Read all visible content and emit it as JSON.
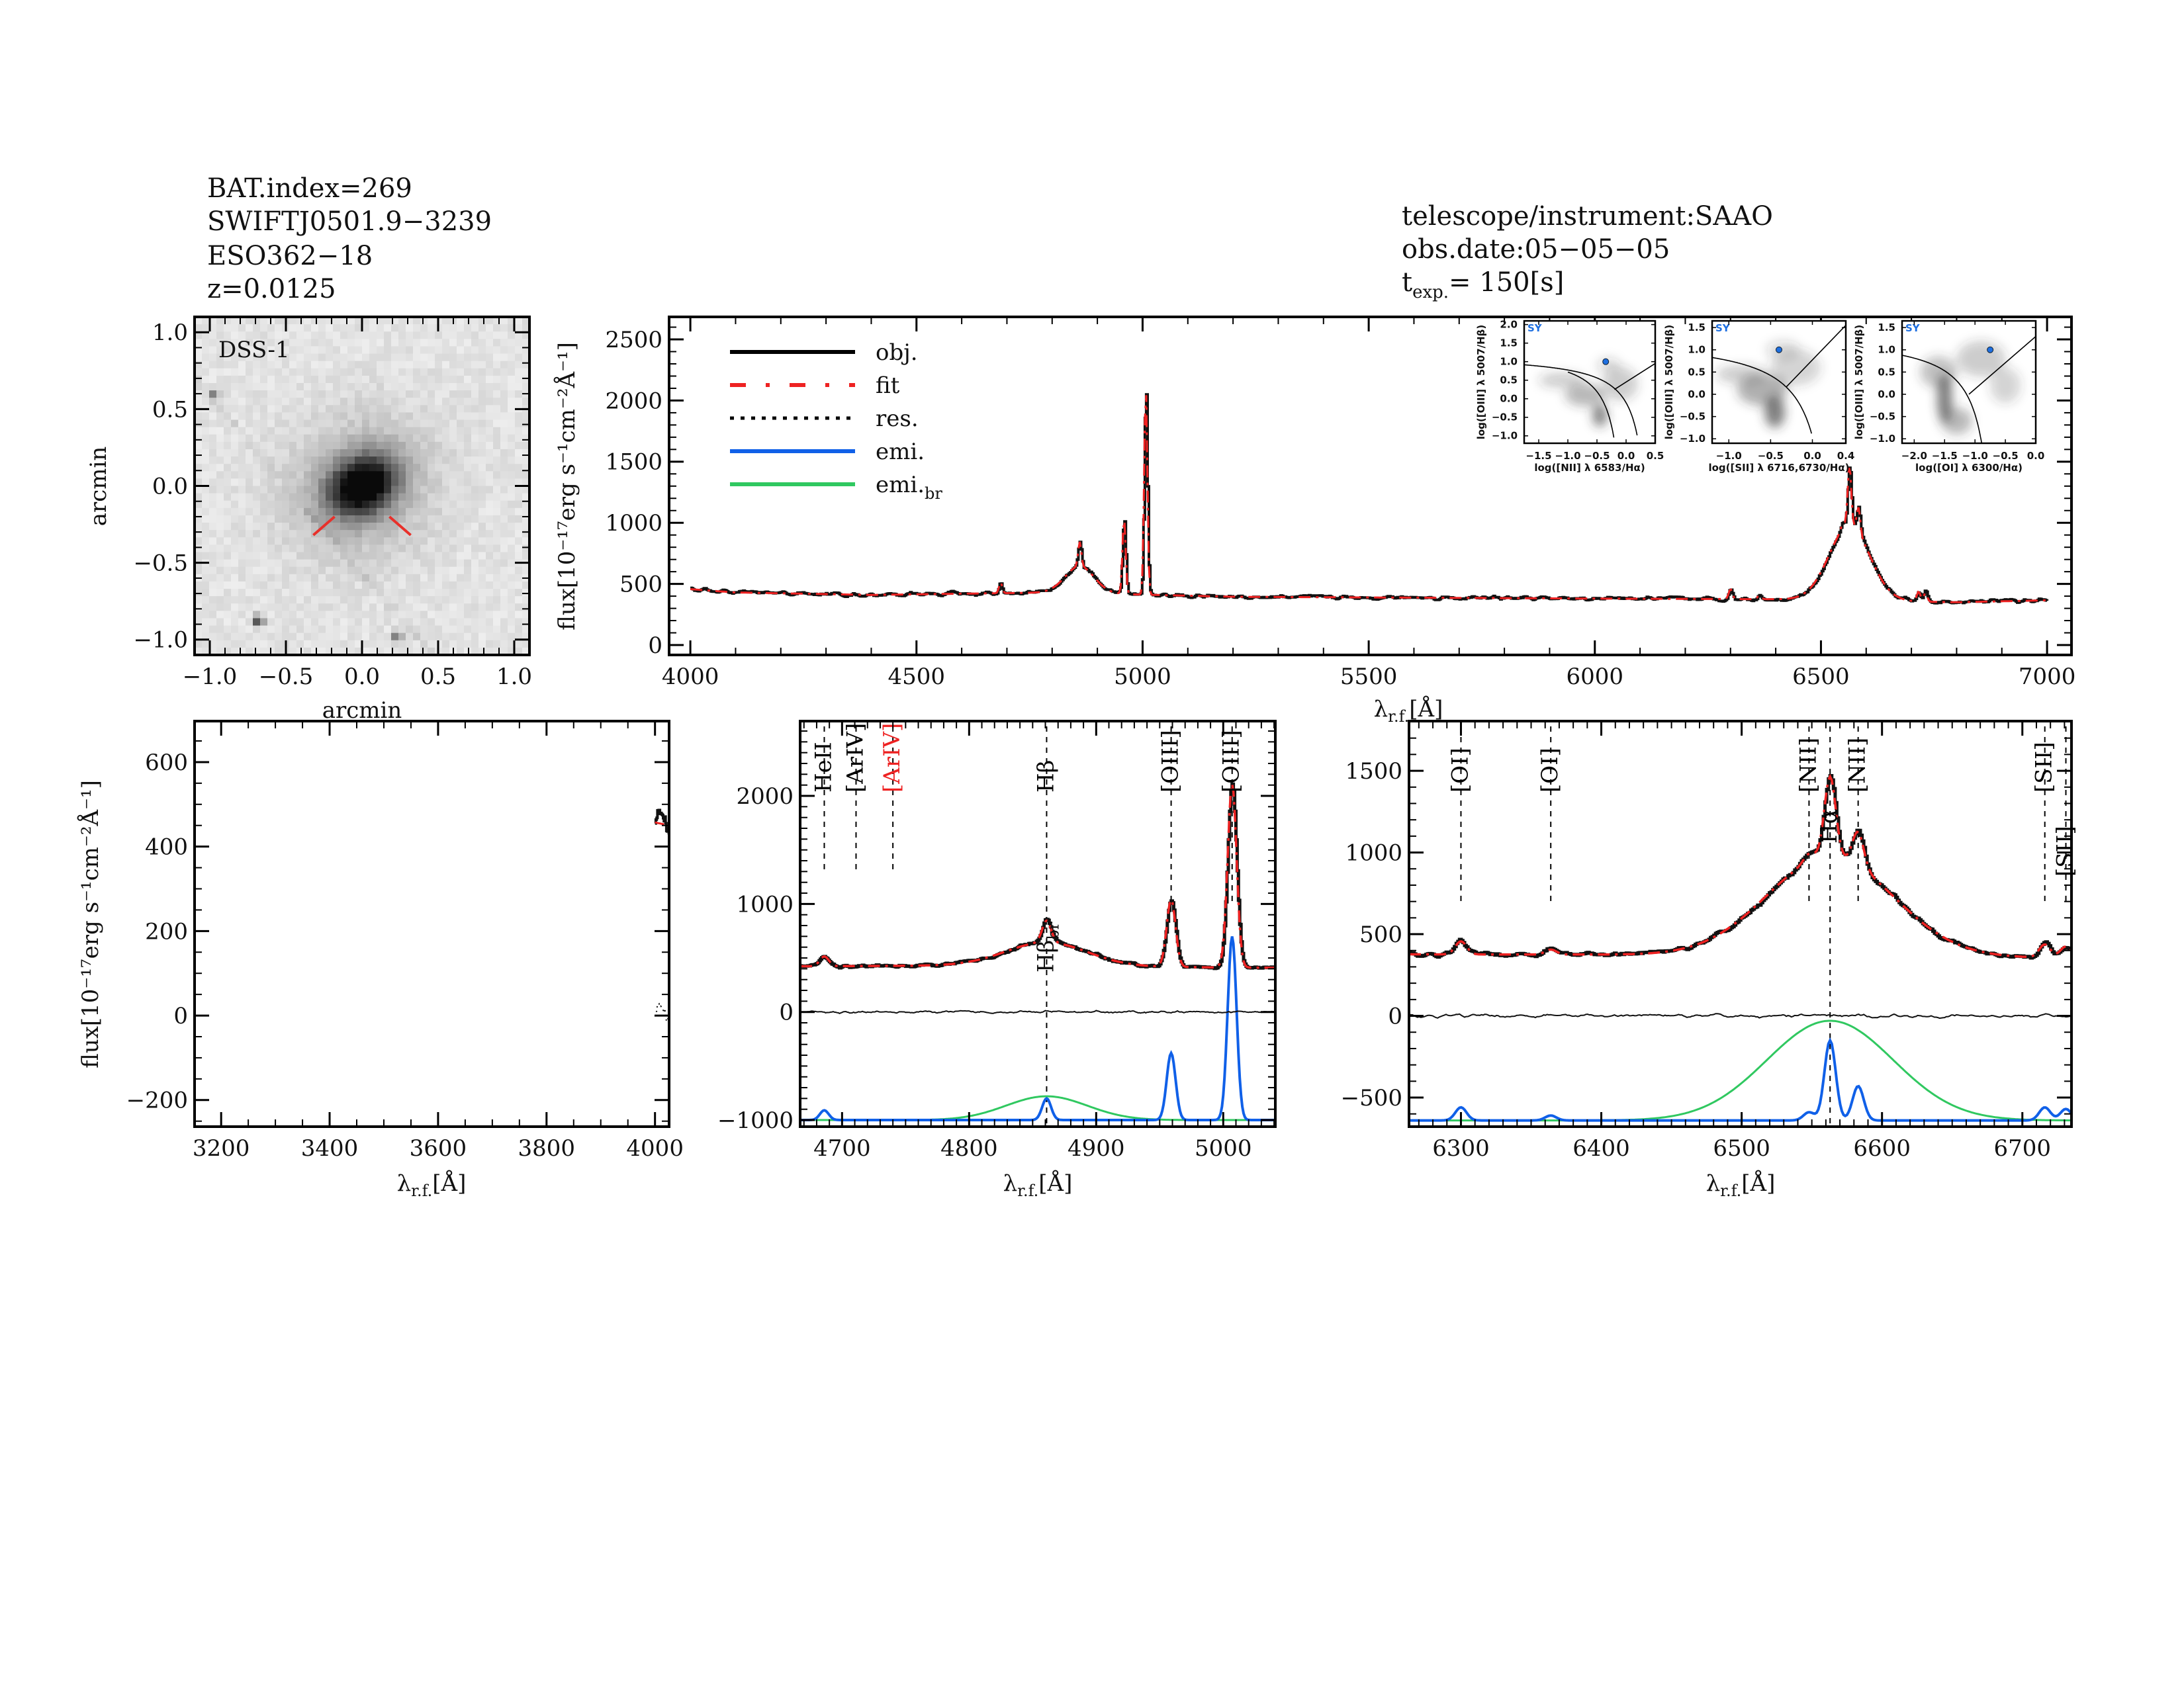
{
  "header_left": {
    "lines": [
      "BAT.index=269",
      "SWIFTJ0501.9−3239",
      "ESO362−18",
      "z=0.0125"
    ]
  },
  "header_right": {
    "instrument": "telescope/instrument:SAAO",
    "obs_date": "obs.date:05−05−05",
    "texp_label": "t",
    "texp_sub": "exp.",
    "texp_value": "=  150[s]"
  },
  "chart_data": [
    {
      "id": "image",
      "type": "heatmap",
      "label": "DSS-1",
      "xlabel": "arcmin",
      "ylabel": "arcmin",
      "xlim": [
        -1.1,
        1.1
      ],
      "ylim": [
        -1.1,
        1.1
      ],
      "xticks": [
        -1.0,
        -0.5,
        0.0,
        0.5,
        1.0
      ],
      "yticks": [
        -1.0,
        -0.5,
        0.0,
        0.5,
        1.0
      ],
      "tick_labels": [
        "−1.0",
        "−0.5",
        "0.0",
        "0.5",
        "1.0"
      ],
      "marker_color": "#e8302a"
    },
    {
      "id": "main",
      "type": "line",
      "ylabel": "flux[10⁻¹⁷erg s⁻¹cm⁻²Å⁻¹]",
      "xlabel": "λ",
      "xlabel_sub": "r.f.",
      "xlabel_unit": "[Å]",
      "xlim": [
        3953,
        7054
      ],
      "ylim": [
        -81,
        2684
      ],
      "xticks": [
        4000,
        4500,
        5000,
        5500,
        6000,
        6500,
        7000
      ],
      "yticks": [
        0,
        500,
        1000,
        1500,
        2000,
        2500
      ],
      "legend": {
        "position": "top-left",
        "entries": [
          {
            "label": "obj.",
            "color": "#000000",
            "style": "solid"
          },
          {
            "label": "fit",
            "color": "#ee2222",
            "style": "dash-dot"
          },
          {
            "label": "res.",
            "color": "#000000",
            "style": "dotted"
          },
          {
            "label": "emi.",
            "color": "#1060e8",
            "style": "solid"
          },
          {
            "label": "emi.",
            "sub": "br",
            "color": "#30c860",
            "style": "solid"
          }
        ]
      },
      "continuum": [
        [
          3953,
          470
        ],
        [
          4100,
          430
        ],
        [
          4400,
          410
        ],
        [
          4800,
          430
        ],
        [
          5200,
          395
        ],
        [
          6000,
          380
        ],
        [
          6400,
          375
        ],
        [
          6800,
          350
        ],
        [
          7054,
          370
        ]
      ],
      "lines": [
        {
          "name": "HeII",
          "center": 4686,
          "peak": 90,
          "sigma": 3.5
        },
        {
          "name": "Hbeta_br",
          "center": 4861,
          "peak": 220,
          "sigma": 32
        },
        {
          "name": "Hbeta",
          "center": 4861,
          "peak": 200,
          "sigma": 3.5
        },
        {
          "name": "[OIII]4959",
          "center": 4959,
          "peak": 620,
          "sigma": 3.5
        },
        {
          "name": "[OIII]5007",
          "center": 5007,
          "peak": 1700,
          "sigma": 3.5
        },
        {
          "name": "[OI]6300",
          "center": 6300,
          "peak": 80,
          "sigma": 4
        },
        {
          "name": "[OI]6364",
          "center": 6364,
          "peak": 30,
          "sigma": 4
        },
        {
          "name": "Halpha_br",
          "center": 6563,
          "peak": 610,
          "sigma": 45
        },
        {
          "name": "[NII]6548",
          "center": 6548,
          "peak": 50,
          "sigma": 4
        },
        {
          "name": "Halpha",
          "center": 6563,
          "peak": 490,
          "sigma": 4
        },
        {
          "name": "[NII]6583",
          "center": 6583,
          "peak": 210,
          "sigma": 4
        },
        {
          "name": "[SII]6716",
          "center": 6716,
          "peak": 80,
          "sigma": 4
        },
        {
          "name": "[SII]6731",
          "center": 6731,
          "peak": 70,
          "sigma": 4
        }
      ]
    },
    {
      "id": "zoom-blue",
      "type": "line",
      "ylabel": "flux[10⁻¹⁷erg s⁻¹cm⁻²Å⁻¹]",
      "xlabel": "λ",
      "xlabel_sub": "r.f.",
      "xlabel_unit": "[Å]",
      "xlim": [
        3151,
        4026
      ],
      "ylim": [
        -263,
        697
      ],
      "xticks": [
        3200,
        3400,
        3600,
        3800,
        4000
      ],
      "yticks": [
        -200,
        0,
        200,
        400,
        600
      ]
    },
    {
      "id": "zoom-hbeta",
      "type": "line",
      "xlabel": "λ",
      "xlabel_sub": "r.f.",
      "xlabel_unit": "[Å]",
      "xlim": [
        4667,
        5041
      ],
      "ylim": [
        -1061,
        2692
      ],
      "xticks": [
        4700,
        4800,
        4900,
        5000
      ],
      "yticks": [
        -1000,
        0,
        1000,
        2000
      ],
      "emission_offset": -1000,
      "line_markers": [
        {
          "label": "HeII",
          "wave": 4686,
          "color": "#000000"
        },
        {
          "label": "[ArIV]",
          "wave": 4711,
          "color": "#000000"
        },
        {
          "label": "[ArIV]",
          "wave": 4740,
          "color": "#ee2222"
        },
        {
          "label": "Hβ",
          "wave": 4861,
          "color": "#000000",
          "full": true,
          "label2": "Hβ",
          "label2_sub": "br"
        },
        {
          "label": "[OIII]",
          "wave": 4959,
          "color": "#000000"
        },
        {
          "label": "[OIII]",
          "wave": 5007,
          "color": "#000000"
        }
      ]
    },
    {
      "id": "zoom-halpha",
      "type": "line",
      "xlabel": "λ",
      "xlabel_sub": "r.f.",
      "xlabel_unit": "[Å]",
      "xlim": [
        6263,
        6735
      ],
      "ylim": [
        -678,
        1804
      ],
      "xticks": [
        6300,
        6400,
        6500,
        6600,
        6700
      ],
      "yticks": [
        -500,
        0,
        500,
        1000,
        1500
      ],
      "emission_offset": -640,
      "line_markers": [
        {
          "label": "[OI]",
          "wave": 6300,
          "color": "#000000"
        },
        {
          "label": "[OI]",
          "wave": 6364,
          "color": "#000000"
        },
        {
          "label": "[NII]",
          "wave": 6548,
          "color": "#000000"
        },
        {
          "label": "Hα",
          "wave": 6563,
          "color": "#000000",
          "full": true,
          "lower": true
        },
        {
          "label": "[NII]",
          "wave": 6583,
          "color": "#000000"
        },
        {
          "label": "[SII]",
          "wave": 6716,
          "color": "#000000"
        },
        {
          "label": "[SII]",
          "wave": 6731,
          "color": "#000000"
        }
      ]
    },
    {
      "id": "bpt-nii",
      "type": "scatter",
      "class_label": "SY",
      "xlabel": "log([NII] λ 6583/Hα)",
      "ylabel": "log([OIII] λ 5007/Hβ)",
      "xlim": [
        -1.75,
        0.5
      ],
      "ylim": [
        -1.2,
        2.1
      ],
      "xticks": [
        -1.5,
        -1.0,
        -0.5,
        0.0,
        0.5
      ],
      "xtick_labels": [
        "−1.5",
        "−1.0",
        "−0.5",
        "0.0",
        "0.5"
      ],
      "yticks": [
        -1.0,
        -0.5,
        0.0,
        0.5,
        1.0,
        1.5,
        2.0
      ],
      "ytick_labels": [
        "−1.0",
        "−0.5",
        "0.0",
        "0.5",
        "1.0",
        "1.5",
        "2.0"
      ],
      "point": [
        -0.35,
        1.0
      ],
      "point_color": "#1e6fe0"
    },
    {
      "id": "bpt-sii",
      "type": "scatter",
      "class_label": "SY",
      "xlabel": "log([SII] λ 6716,6730/Hα)",
      "ylabel": "log([OIII] λ 5007/Hβ)",
      "xlim": [
        -1.2,
        0.4
      ],
      "ylim": [
        -1.1,
        1.65
      ],
      "xticks": [
        -1.0,
        -0.5,
        0.0,
        0.4
      ],
      "xtick_labels": [
        "−1.0",
        "−0.5",
        "0.0",
        "0.4"
      ],
      "yticks": [
        -1.0,
        -0.5,
        0.0,
        0.5,
        1.0,
        1.5
      ],
      "ytick_labels": [
        "−1.0",
        "−0.5",
        "0.0",
        "0.5",
        "1.0",
        "1.5"
      ],
      "point": [
        -0.4,
        1.0
      ],
      "point_color": "#1e6fe0"
    },
    {
      "id": "bpt-oi",
      "type": "scatter",
      "class_label": "SY",
      "xlabel": "log([OI] λ 6300/Hα)",
      "ylabel": "log([OIII] λ 5007/Hβ)",
      "xlim": [
        -2.2,
        0.0
      ],
      "ylim": [
        -1.1,
        1.65
      ],
      "xticks": [
        -2.0,
        -1.5,
        -1.0,
        -0.5,
        0.0
      ],
      "xtick_labels": [
        "−2.0",
        "−1.5",
        "−1.0",
        "−0.5",
        "0.0"
      ],
      "yticks": [
        -1.0,
        -0.5,
        0.0,
        0.5,
        1.0,
        1.5
      ],
      "ytick_labels": [
        "−1.0",
        "−0.5",
        "0.0",
        "0.5",
        "1.0",
        "1.5"
      ],
      "point": [
        -0.75,
        1.0
      ],
      "point_color": "#1e6fe0"
    }
  ]
}
